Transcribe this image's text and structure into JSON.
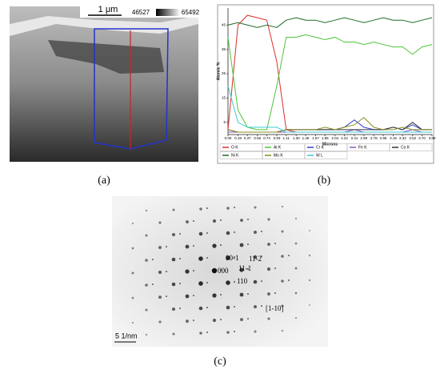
{
  "panels": {
    "a": "(a)",
    "b": "(b)",
    "c": "(c)"
  },
  "panel_a": {
    "scale_bar": "1 μm",
    "range_min": "46527",
    "range_max": "65492"
  },
  "panel_c": {
    "scale_bar": "5 1/nm",
    "spots": [
      "00-1",
      "000",
      "11-1",
      "11-2",
      "110"
    ],
    "zone_axis": "[1-10]"
  },
  "chart_data": {
    "type": "line",
    "y_label": "Atomic %",
    "x_label": "Microns",
    "x": [
      0,
      0.19,
      0.37,
      0.56,
      0.74,
      0.93,
      1.11,
      1.3,
      1.48,
      1.67,
      1.85,
      2.04,
      2.22,
      2.41,
      2.59,
      2.78,
      2.96,
      3.15,
      3.33,
      3.52,
      3.7,
      3.89
    ],
    "xlim": [
      0,
      3.89
    ],
    "xticks": [
      {
        "value": 0,
        "label": "0.00"
      },
      0.19,
      0.37,
      0.56,
      0.74,
      0.93,
      1.11,
      {
        "value": 1.3,
        "label": "1.30"
      },
      1.48,
      1.67,
      1.85,
      2.04,
      2.22,
      2.41,
      2.59,
      2.78,
      2.96,
      3.15,
      3.33,
      3.52,
      {
        "value": 3.7,
        "label": "3.70"
      },
      3.89
    ],
    "ylim": [
      0,
      52
    ],
    "yticks": [
      5,
      15,
      25,
      35,
      45
    ],
    "series": [
      {
        "name": "O K",
        "color": "#d9302c",
        "values": [
          2,
          45,
          49,
          48,
          47,
          30,
          2,
          1,
          1,
          1,
          1,
          1,
          1,
          1,
          1,
          1,
          1,
          1,
          1,
          1,
          1,
          1
        ]
      },
      {
        "name": "Al K",
        "color": "#4fc43a",
        "values": [
          40,
          10,
          3,
          2,
          2,
          20,
          40,
          40,
          41,
          40,
          39,
          40,
          38,
          38,
          37,
          38,
          37,
          36,
          36,
          33,
          36,
          37
        ]
      },
      {
        "name": "Cr K",
        "color": "#2f3fd0",
        "values": [
          1,
          1,
          1,
          1,
          1,
          1,
          2,
          2,
          2,
          2,
          2,
          2,
          3,
          6,
          3,
          2,
          2,
          3,
          2,
          4,
          2,
          2
        ]
      },
      {
        "name": "Fe K",
        "color": "#8a5ac8",
        "values": [
          1,
          1,
          1,
          1,
          1,
          1,
          1,
          1,
          1,
          1,
          1,
          1,
          1,
          2,
          1,
          1,
          1,
          1,
          1,
          2,
          1,
          1
        ]
      },
      {
        "name": "Co K",
        "color": "#333333",
        "values": [
          2,
          1,
          1,
          1,
          1,
          1,
          2,
          2,
          2,
          2,
          2,
          2,
          2,
          2,
          2,
          2,
          2,
          3,
          2,
          5,
          2,
          2
        ]
      },
      {
        "name": "Ni K",
        "color": "#1e6b2a",
        "values": [
          45,
          46,
          45,
          44,
          45,
          44,
          47,
          48,
          47,
          47,
          46,
          47,
          48,
          47,
          46,
          47,
          48,
          47,
          47,
          46,
          47,
          48
        ]
      },
      {
        "name": "Mo K",
        "color": "#8b8b1e",
        "values": [
          2,
          1,
          1,
          1,
          1,
          1,
          2,
          2,
          2,
          2,
          3,
          2,
          3,
          4,
          7,
          3,
          2,
          2,
          3,
          2,
          2,
          2
        ]
      },
      {
        "name": "W L",
        "color": "#3cc9d8",
        "values": [
          20,
          5,
          3,
          3,
          3,
          3,
          1,
          1,
          1,
          1,
          1,
          1,
          1,
          1,
          1,
          1,
          1,
          1,
          1,
          1,
          1,
          1
        ]
      }
    ],
    "grid": false
  }
}
